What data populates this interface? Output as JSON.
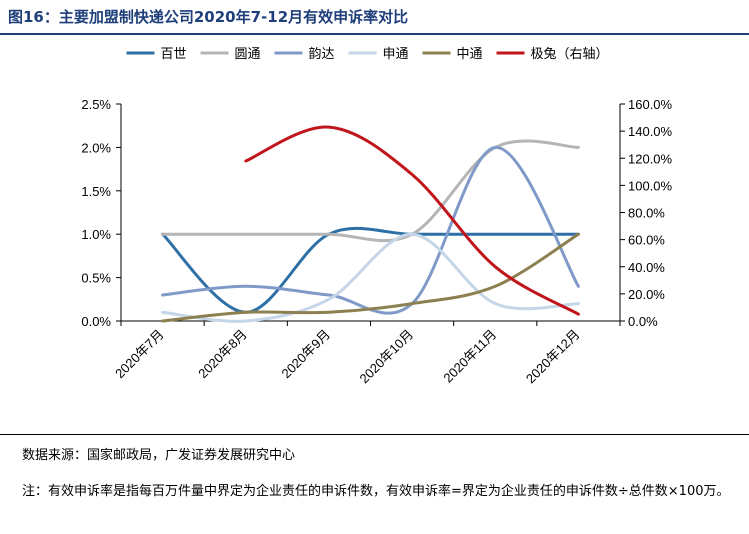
{
  "header": {
    "title": "图16：主要加盟制快递公司2020年7-12月有效申诉率对比"
  },
  "footer": {
    "source": "数据来源：国家邮政局，广发证券发展研究中心",
    "note": "注：有效申诉率是指每百万件量中界定为企业责任的申诉件数，有效申诉率=界定为企业责任的申诉件数÷总件数×100万。"
  },
  "chart_data": {
    "type": "line",
    "title": "",
    "categories": [
      "2020年7月",
      "2020年8月",
      "2020年9月",
      "2020年10月",
      "2020年11月",
      "2020年12月"
    ],
    "left_axis": {
      "ticks": [
        "0.0%",
        "0.5%",
        "1.0%",
        "1.5%",
        "2.0%",
        "2.5%"
      ],
      "range": [
        0,
        2.5
      ],
      "unit": "%"
    },
    "right_axis": {
      "ticks": [
        "0.0%",
        "20.0%",
        "40.0%",
        "60.0%",
        "80.0%",
        "100.0%",
        "120.0%",
        "140.0%",
        "160.0%"
      ],
      "range": [
        0,
        160
      ],
      "unit": "%"
    },
    "legend_position": "top",
    "grid": false,
    "smooth": true,
    "series": [
      {
        "name": "百世",
        "axis": "left",
        "color": "#2e6fa6",
        "values": [
          1.0,
          0.1,
          1.0,
          1.0,
          1.0,
          1.0
        ]
      },
      {
        "name": "圆通",
        "axis": "left",
        "color": "#b5b5b5",
        "values": [
          1.0,
          1.0,
          1.0,
          1.0,
          2.0,
          2.0
        ]
      },
      {
        "name": "韵达",
        "axis": "left",
        "color": "#7f9ac8",
        "values": [
          0.3,
          0.4,
          0.3,
          0.2,
          2.0,
          0.4
        ]
      },
      {
        "name": "申通",
        "axis": "left",
        "color": "#c5d6e8",
        "values": [
          0.1,
          0.0,
          0.25,
          1.0,
          0.2,
          0.2
        ]
      },
      {
        "name": "中通",
        "axis": "left",
        "color": "#8c8050",
        "values": [
          0.0,
          0.1,
          0.1,
          0.2,
          0.4,
          1.0
        ]
      },
      {
        "name": "极兔（右轴）",
        "axis": "right",
        "color": "#c0161b",
        "values": [
          null,
          118,
          143,
          108,
          40,
          5
        ]
      }
    ]
  }
}
